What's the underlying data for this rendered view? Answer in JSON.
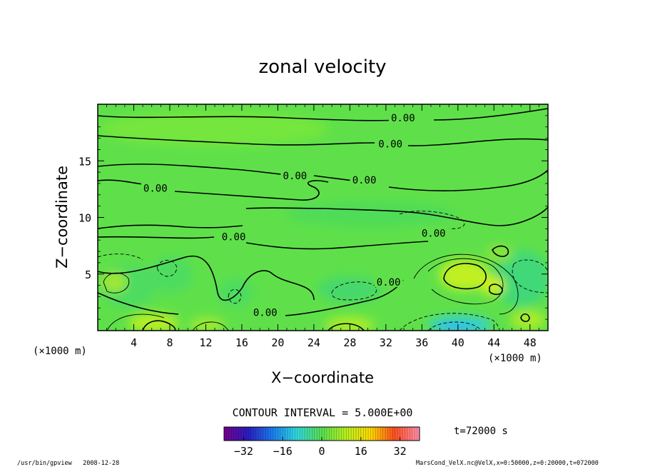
{
  "chart_data": {
    "type": "heatmap",
    "title": "zonal velocity",
    "xlabel": "X−coordinate",
    "ylabel": "Z−coordinate",
    "x_unit": "(×1000 m)",
    "z_unit": "(×1000 m)",
    "x_range": [
      0,
      50
    ],
    "z_range": [
      0,
      20
    ],
    "x_ticks": [
      4,
      8,
      12,
      16,
      20,
      24,
      28,
      32,
      36,
      40,
      44,
      48
    ],
    "z_ticks": [
      5,
      10,
      15
    ],
    "contour_interval_text": "CONTOUR INTERVAL = 5.000E+00",
    "time_text": "t=72000 s",
    "colorbar": {
      "range": [
        -40,
        40
      ],
      "ticks": [
        -32,
        -16,
        0,
        16,
        32
      ],
      "tick_labels": [
        "−32",
        "−16",
        "0",
        "16",
        "32"
      ],
      "colormap": "rainbow",
      "colors": [
        "#8000a0",
        "#2020c8",
        "#20a0ff",
        "#40e0c0",
        "#60e060",
        "#c0f020",
        "#ffd000",
        "#ff6020",
        "#ff80a0"
      ]
    },
    "contour_labels": [
      {
        "x": 33.9,
        "z": 18.8,
        "text": "0.00"
      },
      {
        "x": 32.5,
        "z": 16.5,
        "text": "0.00"
      },
      {
        "x": 21.9,
        "z": 13.7,
        "text": "0.00"
      },
      {
        "x": 29.6,
        "z": 13.3,
        "text": "0.00"
      },
      {
        "x": 6.4,
        "z": 12.6,
        "text": "0.00"
      },
      {
        "x": 37.3,
        "z": 8.6,
        "text": "0.00"
      },
      {
        "x": 15.1,
        "z": 8.3,
        "text": "0.00"
      },
      {
        "x": 32.3,
        "z": 4.3,
        "text": "0.00"
      },
      {
        "x": 18.6,
        "z": 1.6,
        "text": "0.00"
      }
    ]
  },
  "footer": {
    "left": "/usr/bin/gpview   2008-12-28",
    "right": "MarsCond_VelX.nc@VelX,x=0:50000,z=0:20000,t=072000"
  }
}
